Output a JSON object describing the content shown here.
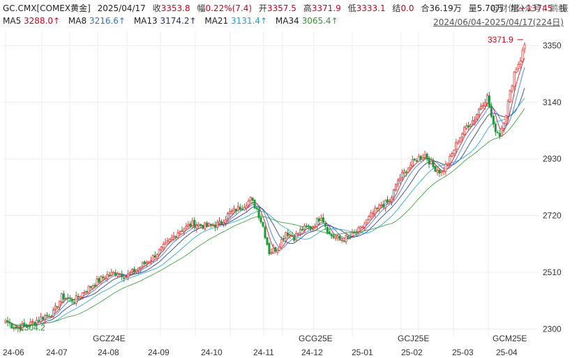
{
  "header": {
    "symbol": "GC.CMX[COMEX黄金]",
    "date": "2025/04/17",
    "close_label": "收",
    "close": "3353.8",
    "change_label": "幅",
    "change": "0.22%(7.4)",
    "open_label": "开",
    "open": "3357.5",
    "high_label": "高",
    "high": "3371.9",
    "low_label": "低",
    "low": "3333.1",
    "settle_label": "结",
    "settle": "0.0",
    "hold_label": "合",
    "hold": "36.19万",
    "volume_label": "量",
    "volume": "5.70万",
    "increase_label": "增",
    "increase": "+13745",
    "amplitude_label": "振",
    "watermark": "@财信公众号：鹅线"
  },
  "ma_row": {
    "items": [
      {
        "name": "MA5",
        "value": "3288.0↑",
        "color": "#d0021b"
      },
      {
        "name": "MA8",
        "value": "3216.6↑",
        "color": "#2f6fd0"
      },
      {
        "name": "MA13",
        "value": "3174.2↑",
        "color": "#1b2f8f"
      },
      {
        "name": "MA21",
        "value": "3131.4↑",
        "color": "#1aa3c9"
      },
      {
        "name": "MA34",
        "value": "3065.4↑",
        "color": "#2e9a2e"
      }
    ],
    "date_range": "2024/06/04-2025/04/17(224日)"
  },
  "chart_data": {
    "type": "candlestick",
    "ylim": [
      2270,
      3400
    ],
    "yticks": [
      "3350",
      "3140",
      "2930",
      "2720",
      "2510",
      "2300"
    ],
    "xtick_labels": [
      "24-06",
      "24-07",
      "GCZ24E",
      "24-08",
      "24-09",
      "24-10",
      "24-11",
      "GCG25E",
      "24-12",
      "25-01",
      "GCJ25E",
      "25-02",
      "25-03",
      "GCM25E",
      "25-04"
    ],
    "annotations": {
      "high_label": "3371.9",
      "low_label": "2304.2"
    },
    "grid": true,
    "anchors": [
      [
        0,
        2330
      ],
      [
        5,
        2305
      ],
      [
        12,
        2320
      ],
      [
        18,
        2345
      ],
      [
        23,
        2360
      ],
      [
        27,
        2420
      ],
      [
        33,
        2405
      ],
      [
        38,
        2440
      ],
      [
        44,
        2475
      ],
      [
        49,
        2500
      ],
      [
        54,
        2510
      ],
      [
        58,
        2495
      ],
      [
        63,
        2520
      ],
      [
        70,
        2560
      ],
      [
        77,
        2610
      ],
      [
        83,
        2660
      ],
      [
        90,
        2690
      ],
      [
        97,
        2680
      ],
      [
        103,
        2690
      ],
      [
        108,
        2730
      ],
      [
        114,
        2755
      ],
      [
        118,
        2780
      ],
      [
        121,
        2745
      ],
      [
        124,
        2680
      ],
      [
        127,
        2585
      ],
      [
        131,
        2600
      ],
      [
        135,
        2660
      ],
      [
        139,
        2640
      ],
      [
        143,
        2670
      ],
      [
        148,
        2680
      ],
      [
        152,
        2720
      ],
      [
        156,
        2650
      ],
      [
        161,
        2630
      ],
      [
        166,
        2640
      ],
      [
        171,
        2670
      ],
      [
        176,
        2720
      ],
      [
        181,
        2760
      ],
      [
        185,
        2770
      ],
      [
        189,
        2850
      ],
      [
        194,
        2900
      ],
      [
        198,
        2930
      ],
      [
        202,
        2945
      ],
      [
        206,
        2900
      ],
      [
        210,
        2880
      ],
      [
        214,
        2930
      ],
      [
        218,
        3000
      ],
      [
        222,
        3050
      ],
      [
        226,
        3080
      ],
      [
        229,
        3130
      ],
      [
        232,
        3160
      ],
      [
        235,
        3050
      ],
      [
        238,
        3020
      ],
      [
        241,
        3100
      ],
      [
        245,
        3250
      ],
      [
        248,
        3300
      ],
      [
        250,
        3353.8
      ]
    ]
  }
}
